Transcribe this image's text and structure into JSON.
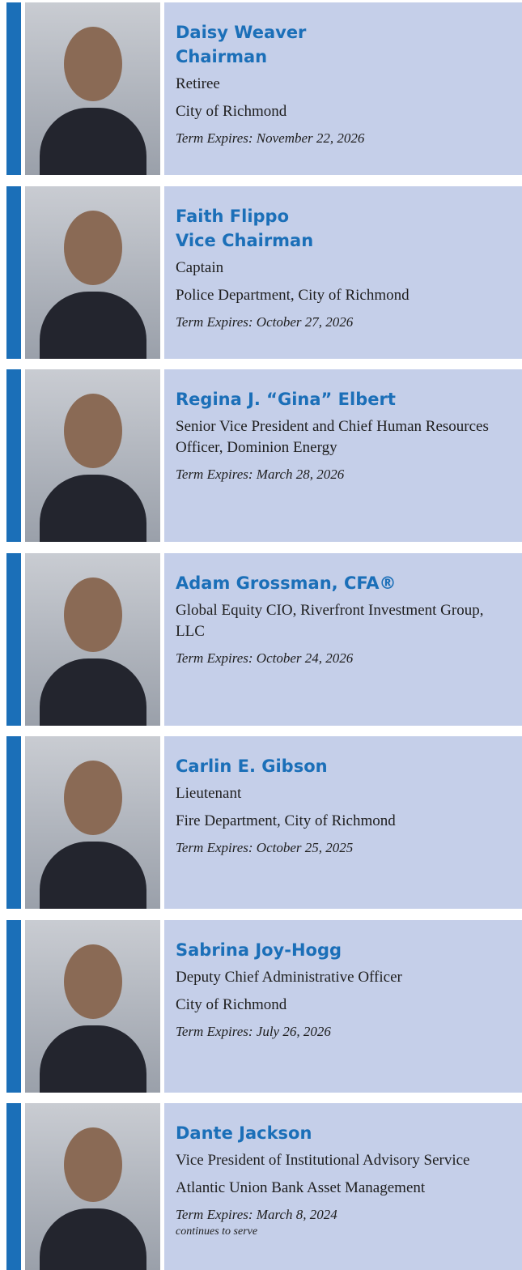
{
  "members": [
    {
      "name": "Daisy Weaver",
      "title": "Chairman",
      "lines": [
        "Retiree",
        "City of Richmond"
      ],
      "term": "Term Expires: November 22, 2026"
    },
    {
      "name": "Faith Flippo",
      "title": "Vice Chairman",
      "lines": [
        "Captain",
        "Police Department, City of Richmond"
      ],
      "term": "Term Expires: October 27, 2026"
    },
    {
      "name": "Regina J. “Gina” Elbert",
      "lines": [
        "Senior Vice President and Chief Human Resources Officer, Dominion Energy"
      ],
      "term": "Term Expires: March 28, 2026"
    },
    {
      "name": "Adam Grossman, CFA®",
      "lines": [
        "Global Equity CIO, Riverfront Investment Group, LLC"
      ],
      "term": "Term Expires: October 24, 2026"
    },
    {
      "name": "Carlin E. Gibson",
      "lines": [
        "Lieutenant",
        "Fire Department, City of Richmond"
      ],
      "term": "Term Expires: October 25, 2025"
    },
    {
      "name": "Sabrina Joy-Hogg",
      "lines": [
        "Deputy Chief Administrative Officer",
        "City of Richmond"
      ],
      "term": "Term Expires: July 26, 2026"
    },
    {
      "name": "Dante Jackson",
      "lines": [
        "Vice President of Institutional Advisory Service",
        "Atlantic Union Bank Asset Management"
      ],
      "term": "Term Expires: March 8, 2024",
      "note": "continues to serve"
    }
  ]
}
